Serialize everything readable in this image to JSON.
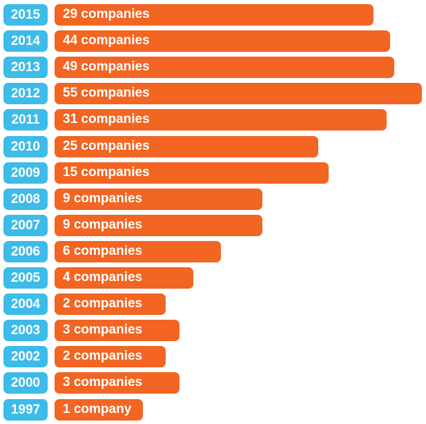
{
  "colors": {
    "year": "#3dbbe9",
    "bar": "#f26522"
  },
  "chart_data": {
    "type": "bar",
    "orientation": "horizontal",
    "title": "",
    "xlabel": "",
    "ylabel": "",
    "categories": [
      "2015",
      "2014",
      "2013",
      "2012",
      "2011",
      "2010",
      "2009",
      "2008",
      "2007",
      "2006",
      "2005",
      "2004",
      "2003",
      "2002",
      "2000",
      "1997"
    ],
    "values": [
      29,
      44,
      49,
      55,
      31,
      25,
      15,
      9,
      9,
      6,
      4,
      2,
      3,
      2,
      3,
      1
    ],
    "labels": [
      "29 companies",
      "44 companies",
      "49 companies",
      "55 companies",
      "31 companies",
      "25 companies",
      "15 companies",
      "9 companies",
      "9 companies",
      "6 companies",
      "4 companies",
      "2 companies",
      "3 companies",
      "2 companies",
      "3 companies",
      "1 company"
    ]
  }
}
